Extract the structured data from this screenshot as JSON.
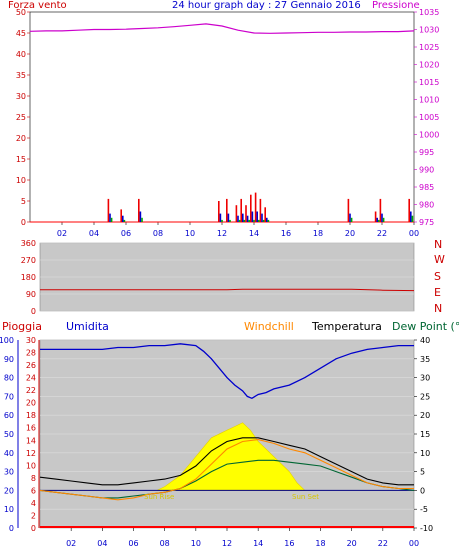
{
  "colors": {
    "panel_top": "#ffffff",
    "panel_bottom": "#c0c0c0",
    "wind": "#ff0000",
    "pressure": "#cc00cc",
    "direction": "#cc0000",
    "humidity": "#0000cc",
    "windchill": "#ff8800",
    "temperature": "#000000",
    "dewpoint": "#006633",
    "rain": "#ff0000",
    "sun": "#ffff00",
    "label_red": "#cc0000",
    "label_blue": "#0000cc",
    "label_orange": "#ff8800",
    "label_green": "#006633",
    "label_magenta": "#cc00cc"
  },
  "header": {
    "wind_label": "Forza vento",
    "title": "24 hour graph day : 27 Gennaio 2016",
    "pressure_label": "Pressione"
  },
  "compass": [
    "N",
    "W",
    "S",
    "E",
    "N"
  ],
  "legend": {
    "rain": "Pioggia",
    "humidity": "Umidita",
    "windchill": "Windchill",
    "temperature": "Temperatura",
    "dewpoint": "Dew Point (°C"
  },
  "annotations": {
    "sunrise": "Sun Rise",
    "sunset": "Sun Set"
  },
  "chart_data": [
    {
      "type": "bar",
      "title": "24 hour graph day : 27 Gennaio 2016",
      "x_ticks": [
        "02",
        "04",
        "06",
        "08",
        "10",
        "12",
        "14",
        "16",
        "18",
        "20",
        "22",
        "00"
      ],
      "xlim": [
        0,
        24
      ],
      "ylabel_left": "Forza vento",
      "ylim_left": [
        0,
        50
      ],
      "yticks_left": [
        0,
        5,
        10,
        15,
        20,
        25,
        30,
        35,
        40,
        45,
        50
      ],
      "ylabel_right": "Pressione",
      "ylim_right": [
        975,
        1035
      ],
      "yticks_right": [
        975,
        980,
        985,
        990,
        995,
        1000,
        1005,
        1010,
        1015,
        1020,
        1025,
        1030,
        1035
      ],
      "wind_bars": [
        {
          "x": 5.0,
          "values": [
            5.5,
            2.0,
            1.0
          ]
        },
        {
          "x": 5.8,
          "values": [
            3.0,
            1.5,
            0.5
          ]
        },
        {
          "x": 6.9,
          "values": [
            5.5,
            2.5,
            1.0
          ]
        },
        {
          "x": 11.9,
          "values": [
            5.0,
            2.0,
            0.5
          ]
        },
        {
          "x": 12.4,
          "values": [
            5.5,
            2.0,
            0.5
          ]
        },
        {
          "x": 13.0,
          "values": [
            4.0,
            1.5,
            0.5
          ]
        },
        {
          "x": 13.3,
          "values": [
            5.5,
            2.0,
            0.5
          ]
        },
        {
          "x": 13.6,
          "values": [
            4.0,
            1.5,
            0.5
          ]
        },
        {
          "x": 13.9,
          "values": [
            6.5,
            2.5,
            0.5
          ]
        },
        {
          "x": 14.2,
          "values": [
            7.0,
            2.5,
            0.5
          ]
        },
        {
          "x": 14.5,
          "values": [
            5.5,
            2.0,
            0.5
          ]
        },
        {
          "x": 14.8,
          "values": [
            3.5,
            1.0,
            0.5
          ]
        },
        {
          "x": 20.0,
          "values": [
            5.5,
            2.0,
            1.0
          ]
        },
        {
          "x": 21.7,
          "values": [
            2.5,
            1.0,
            0.5
          ]
        },
        {
          "x": 22.0,
          "values": [
            5.5,
            2.0,
            1.0
          ]
        },
        {
          "x": 23.8,
          "values": [
            5.5,
            2.5,
            1.5
          ]
        }
      ],
      "pressure": {
        "x": [
          0,
          1,
          2,
          3,
          4,
          5,
          6,
          7,
          8,
          9,
          10,
          11,
          12,
          13,
          14,
          15,
          16,
          17,
          18,
          19,
          20,
          21,
          22,
          23,
          24
        ],
        "y": [
          1029.5,
          1029.6,
          1029.6,
          1029.8,
          1030.0,
          1030.0,
          1030.1,
          1030.3,
          1030.5,
          1030.8,
          1031.2,
          1031.6,
          1031.0,
          1029.8,
          1029.0,
          1028.9,
          1029.0,
          1029.1,
          1029.2,
          1029.2,
          1029.3,
          1029.3,
          1029.4,
          1029.4,
          1029.6
        ]
      }
    },
    {
      "type": "line",
      "ylabel_right": "N W S E N",
      "ylim": [
        0,
        360
      ],
      "yticks": [
        0,
        90,
        180,
        270,
        360
      ],
      "direction": {
        "x": [
          0,
          4,
          8,
          12,
          13,
          16,
          20,
          22,
          24
        ],
        "y": [
          112,
          112,
          112,
          112,
          115,
          115,
          115,
          110,
          108
        ]
      }
    },
    {
      "type": "line",
      "x_ticks": [
        "02",
        "04",
        "06",
        "08",
        "10",
        "12",
        "14",
        "16",
        "18",
        "20",
        "22",
        "00"
      ],
      "xlim": [
        0,
        24
      ],
      "yticks_rain": [
        0,
        2,
        4,
        6,
        8,
        10,
        12,
        14,
        16,
        18,
        20,
        22,
        24,
        26,
        28,
        30
      ],
      "yticks_humidity": [
        0,
        10,
        20,
        30,
        40,
        50,
        60,
        70,
        80,
        90,
        100
      ],
      "ylim_temp": [
        -10,
        40
      ],
      "yticks_temp": [
        -10,
        -5,
        0,
        5,
        10,
        15,
        20,
        25,
        30,
        35,
        40
      ],
      "series": [
        {
          "name": "Umidita",
          "x": [
            0,
            1,
            2,
            3,
            4,
            5,
            6,
            7,
            8,
            9,
            10,
            10.5,
            11,
            11.5,
            12,
            12.5,
            13,
            13.3,
            13.6,
            14,
            14.5,
            15,
            16,
            17,
            18,
            19,
            20,
            21,
            22,
            23,
            24
          ],
          "y": [
            95,
            95,
            95,
            95,
            95,
            96,
            96,
            97,
            97,
            98,
            97,
            94,
            90,
            85,
            80,
            76,
            73,
            70,
            69,
            71,
            72,
            74,
            76,
            80,
            85,
            90,
            93,
            95,
            96,
            97,
            97
          ]
        },
        {
          "name": "Temperatura",
          "x": [
            0,
            1,
            2,
            3,
            4,
            5,
            6,
            7,
            8,
            9,
            10,
            11,
            12,
            13,
            14,
            15,
            16,
            17,
            18,
            19,
            20,
            21,
            22,
            23,
            24
          ],
          "y": [
            3.5,
            3.0,
            2.5,
            2.0,
            1.5,
            1.5,
            2.0,
            2.5,
            3.0,
            4.0,
            6.5,
            10.5,
            13.0,
            14.0,
            14.0,
            13.0,
            12.0,
            11.0,
            9.0,
            7.0,
            5.0,
            3.0,
            2.0,
            1.5,
            1.5
          ]
        },
        {
          "name": "Dew Point",
          "x": [
            0,
            1,
            2,
            3,
            4,
            5,
            6,
            7,
            8,
            9,
            10,
            11,
            12,
            13,
            14,
            15,
            16,
            17,
            18,
            19,
            20,
            21,
            22,
            23,
            24
          ],
          "y": [
            0,
            -0.5,
            -1.0,
            -1.5,
            -2.0,
            -2.0,
            -1.5,
            -1.0,
            -0.5,
            0.5,
            2.5,
            5.0,
            7.0,
            7.5,
            8.0,
            8.0,
            7.5,
            7.0,
            6.5,
            5.0,
            3.5,
            2.0,
            1.0,
            0.5,
            0
          ]
        },
        {
          "name": "Windchill",
          "x": [
            0,
            1,
            2,
            3,
            4,
            5,
            6,
            7,
            8,
            9,
            10,
            11,
            12,
            13,
            14,
            15,
            16,
            17,
            18,
            19,
            20,
            21,
            22,
            23,
            24
          ],
          "y": [
            0,
            -0.5,
            -1.0,
            -1.5,
            -2.0,
            -2.5,
            -2.0,
            -1.0,
            -0.5,
            0.5,
            3.0,
            7.0,
            11.0,
            13.0,
            13.5,
            12.5,
            11.0,
            10.0,
            8.0,
            6.0,
            4.0,
            2.0,
            1.0,
            0.5,
            0.5
          ]
        }
      ],
      "solar": {
        "x": [
          7.5,
          8,
          9,
          10,
          11,
          12,
          12.5,
          13,
          13.5,
          14,
          14.5,
          15,
          16,
          16.5,
          17
        ],
        "y": [
          0,
          1,
          4,
          9,
          14,
          16,
          17,
          18,
          16,
          13,
          11,
          9,
          5,
          2,
          0
        ]
      },
      "dewpoint_reference": 0
    }
  ]
}
